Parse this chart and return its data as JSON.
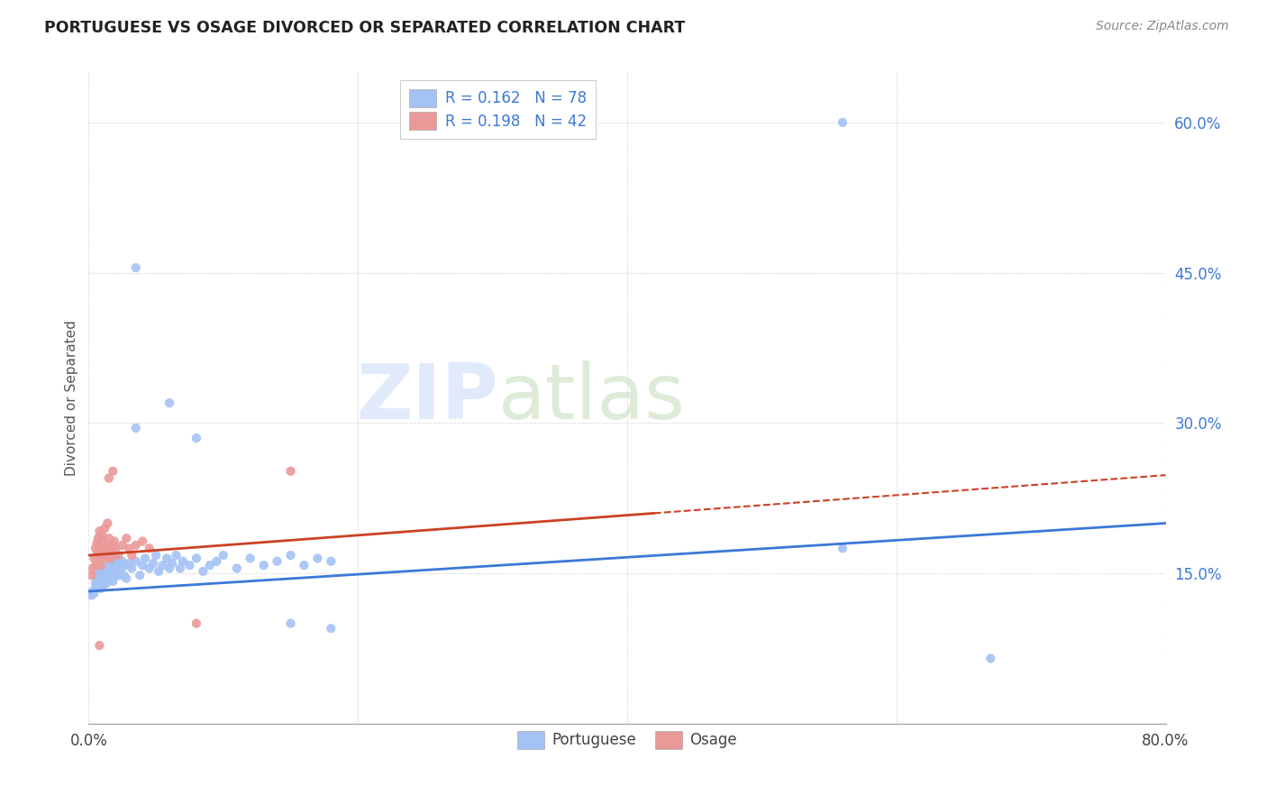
{
  "title": "PORTUGUESE VS OSAGE DIVORCED OR SEPARATED CORRELATION CHART",
  "source": "Source: ZipAtlas.com",
  "ylabel": "Divorced or Separated",
  "xlim": [
    0,
    0.8
  ],
  "ylim": [
    0,
    0.65
  ],
  "yticks": [
    0.15,
    0.3,
    0.45,
    0.6
  ],
  "ytick_labels": [
    "15.0%",
    "30.0%",
    "45.0%",
    "60.0%"
  ],
  "xtick_labels": [
    "0.0%",
    "80.0%"
  ],
  "xtick_pos": [
    0.0,
    0.8
  ],
  "watermark_zip": "ZIP",
  "watermark_atlas": "atlas",
  "blue_color": "#a4c2f4",
  "pink_color": "#ea9999",
  "blue_line_color": "#3c78d8",
  "pink_line_color": "#cc4125",
  "blue_scatter": [
    [
      0.002,
      0.128
    ],
    [
      0.003,
      0.132
    ],
    [
      0.004,
      0.13
    ],
    [
      0.005,
      0.135
    ],
    [
      0.005,
      0.14
    ],
    [
      0.006,
      0.138
    ],
    [
      0.006,
      0.145
    ],
    [
      0.007,
      0.142
    ],
    [
      0.007,
      0.148
    ],
    [
      0.008,
      0.14
    ],
    [
      0.008,
      0.15
    ],
    [
      0.009,
      0.145
    ],
    [
      0.009,
      0.135
    ],
    [
      0.01,
      0.152
    ],
    [
      0.01,
      0.142
    ],
    [
      0.011,
      0.148
    ],
    [
      0.011,
      0.138
    ],
    [
      0.012,
      0.155
    ],
    [
      0.012,
      0.145
    ],
    [
      0.013,
      0.15
    ],
    [
      0.013,
      0.14
    ],
    [
      0.014,
      0.148
    ],
    [
      0.015,
      0.158
    ],
    [
      0.015,
      0.145
    ],
    [
      0.016,
      0.152
    ],
    [
      0.017,
      0.148
    ],
    [
      0.018,
      0.16
    ],
    [
      0.018,
      0.142
    ],
    [
      0.019,
      0.155
    ],
    [
      0.02,
      0.148
    ],
    [
      0.02,
      0.165
    ],
    [
      0.021,
      0.152
    ],
    [
      0.022,
      0.158
    ],
    [
      0.023,
      0.148
    ],
    [
      0.024,
      0.155
    ],
    [
      0.025,
      0.162
    ],
    [
      0.026,
      0.148
    ],
    [
      0.027,
      0.158
    ],
    [
      0.028,
      0.145
    ],
    [
      0.03,
      0.16
    ],
    [
      0.032,
      0.155
    ],
    [
      0.035,
      0.162
    ],
    [
      0.038,
      0.148
    ],
    [
      0.04,
      0.158
    ],
    [
      0.042,
      0.165
    ],
    [
      0.045,
      0.155
    ],
    [
      0.048,
      0.16
    ],
    [
      0.05,
      0.168
    ],
    [
      0.052,
      0.152
    ],
    [
      0.055,
      0.158
    ],
    [
      0.058,
      0.165
    ],
    [
      0.06,
      0.155
    ],
    [
      0.062,
      0.16
    ],
    [
      0.065,
      0.168
    ],
    [
      0.068,
      0.155
    ],
    [
      0.07,
      0.162
    ],
    [
      0.075,
      0.158
    ],
    [
      0.08,
      0.165
    ],
    [
      0.085,
      0.152
    ],
    [
      0.09,
      0.158
    ],
    [
      0.095,
      0.162
    ],
    [
      0.1,
      0.168
    ],
    [
      0.11,
      0.155
    ],
    [
      0.12,
      0.165
    ],
    [
      0.13,
      0.158
    ],
    [
      0.14,
      0.162
    ],
    [
      0.15,
      0.168
    ],
    [
      0.16,
      0.158
    ],
    [
      0.17,
      0.165
    ],
    [
      0.18,
      0.162
    ],
    [
      0.035,
      0.295
    ],
    [
      0.06,
      0.32
    ],
    [
      0.08,
      0.285
    ],
    [
      0.035,
      0.455
    ],
    [
      0.15,
      0.1
    ],
    [
      0.18,
      0.095
    ],
    [
      0.56,
      0.175
    ],
    [
      0.67,
      0.065
    ],
    [
      0.56,
      0.6
    ]
  ],
  "pink_scatter": [
    [
      0.002,
      0.148
    ],
    [
      0.003,
      0.155
    ],
    [
      0.004,
      0.165
    ],
    [
      0.005,
      0.158
    ],
    [
      0.005,
      0.175
    ],
    [
      0.006,
      0.168
    ],
    [
      0.006,
      0.18
    ],
    [
      0.007,
      0.172
    ],
    [
      0.007,
      0.185
    ],
    [
      0.008,
      0.178
    ],
    [
      0.008,
      0.192
    ],
    [
      0.009,
      0.165
    ],
    [
      0.009,
      0.158
    ],
    [
      0.01,
      0.175
    ],
    [
      0.01,
      0.188
    ],
    [
      0.011,
      0.168
    ],
    [
      0.011,
      0.182
    ],
    [
      0.012,
      0.175
    ],
    [
      0.012,
      0.195
    ],
    [
      0.013,
      0.165
    ],
    [
      0.013,
      0.178
    ],
    [
      0.014,
      0.2
    ],
    [
      0.015,
      0.172
    ],
    [
      0.015,
      0.185
    ],
    [
      0.016,
      0.165
    ],
    [
      0.017,
      0.178
    ],
    [
      0.018,
      0.172
    ],
    [
      0.019,
      0.182
    ],
    [
      0.02,
      0.175
    ],
    [
      0.022,
      0.168
    ],
    [
      0.025,
      0.178
    ],
    [
      0.028,
      0.185
    ],
    [
      0.03,
      0.175
    ],
    [
      0.032,
      0.168
    ],
    [
      0.035,
      0.178
    ],
    [
      0.04,
      0.182
    ],
    [
      0.045,
      0.175
    ],
    [
      0.08,
      0.1
    ],
    [
      0.015,
      0.245
    ],
    [
      0.018,
      0.252
    ],
    [
      0.15,
      0.252
    ],
    [
      0.008,
      0.078
    ]
  ],
  "background_color": "#ffffff",
  "grid_color": "#cccccc",
  "tick_color_y": "#3c78d8",
  "tick_color_x": "#444444",
  "blue_trend": [
    0.0,
    0.8,
    0.132,
    0.2
  ],
  "pink_trend_start": 0.0,
  "pink_trend_end": 0.42,
  "pink_trend_y0": 0.168,
  "pink_trend_y1": 0.21
}
